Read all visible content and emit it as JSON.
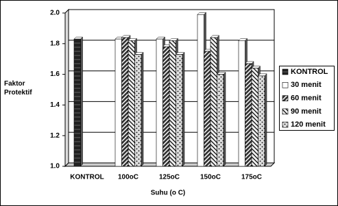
{
  "chart_data": {
    "type": "bar",
    "y_label": "Faktor Protektif",
    "x_label": "Suhu (o C)",
    "categories": [
      "KONTROL",
      "100oC",
      "125oC",
      "150oC",
      "175oC"
    ],
    "series": [
      {
        "name": "KONTROL",
        "color": "#222222",
        "values": [
          1.83,
          null,
          null,
          null,
          null
        ]
      },
      {
        "name": "30 menit",
        "color": "#ffffff",
        "values": [
          null,
          1.83,
          1.83,
          1.99,
          1.82
        ]
      },
      {
        "name": "60 menit",
        "color": "#333333",
        "values": [
          null,
          1.84,
          1.78,
          1.75,
          1.67
        ]
      },
      {
        "name": "90 menit",
        "color": "#eeeeee",
        "values": [
          null,
          1.82,
          1.82,
          1.84,
          1.64
        ]
      },
      {
        "name": "120 menit",
        "color": "#dddddd",
        "values": [
          null,
          1.73,
          1.73,
          1.6,
          1.59
        ]
      }
    ],
    "ylim": [
      1.0,
      2.0
    ],
    "yticks": [
      {
        "value": 1.0,
        "label": "1.0"
      },
      1.2,
      1.4,
      1.6,
      1.8,
      {
        "value": 2.0,
        "label": "2.0"
      }
    ],
    "grid": true,
    "legend": "right"
  }
}
